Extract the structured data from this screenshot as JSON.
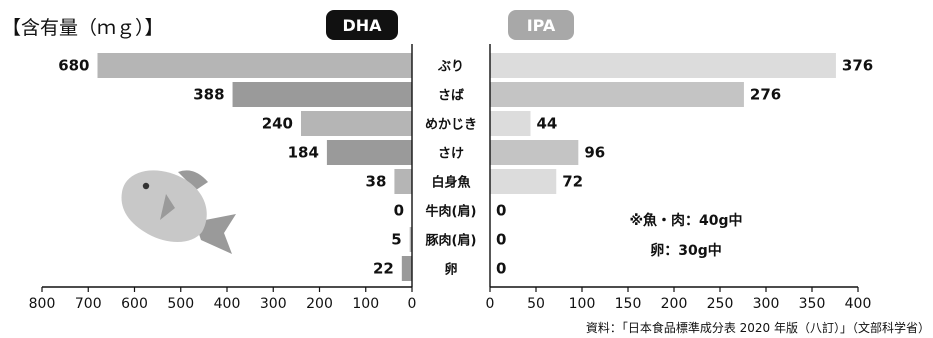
{
  "chart_data": {
    "type": "bar",
    "title": "【含有量（ｍｇ）】",
    "categories": [
      "ぶり",
      "さば",
      "めかじき",
      "さけ",
      "白身魚",
      "牛肉(肩)",
      "豚肉(肩)",
      "卵"
    ],
    "series": [
      {
        "name": "DHA",
        "values": [
          680,
          388,
          240,
          184,
          38,
          0,
          5,
          22
        ],
        "xlim": [
          800,
          0
        ],
        "ticks": [
          800,
          700,
          600,
          500,
          400,
          300,
          200,
          100,
          0
        ]
      },
      {
        "name": "IPA",
        "values": [
          376,
          276,
          44,
          96,
          72,
          0,
          0,
          0
        ],
        "xlim": [
          0,
          400
        ],
        "ticks": [
          0,
          50,
          100,
          150,
          200,
          250,
          300,
          350,
          400
        ]
      }
    ],
    "notes": [
      "※魚・肉：40g中",
      "卵：30g中"
    ],
    "source": "資料：「日本食品標準成分表 2020 年版（八訂）」（文部科学省）",
    "colors": {
      "dha_bars": [
        "#b5b5b5",
        "#9a9a9a",
        "#b5b5b5",
        "#9a9a9a",
        "#b5b5b5",
        "#9a9a9a",
        "#b5b5b5",
        "#9a9a9a"
      ],
      "ipa_bars": [
        "#dcdcdc",
        "#c4c4c4",
        "#dcdcdc",
        "#c4c4c4",
        "#dcdcdc",
        "#c4c4c4",
        "#dcdcdc",
        "#c4c4c4"
      ],
      "dha_badge": "#111111",
      "ipa_badge": "#a8a8a8",
      "fish_body": "#c8c8c8",
      "fish_fin": "#9a9a9a"
    }
  }
}
